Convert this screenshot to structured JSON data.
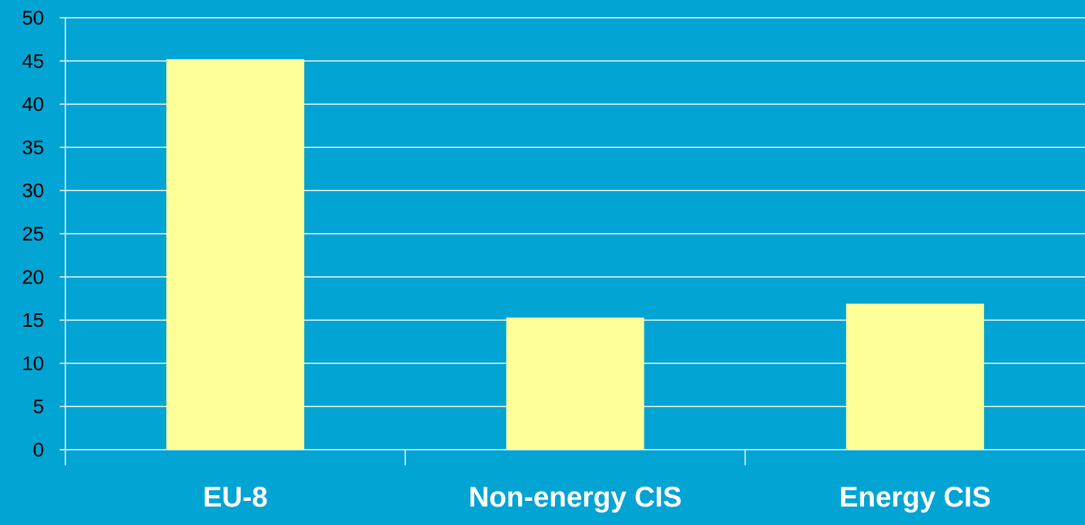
{
  "colors": {
    "background": "#02A4D3",
    "bar_fill": "#FFFF99",
    "gridline": "#FFFFFF",
    "axis": "#FFFFFF",
    "tick_label": "#000000",
    "category_label": "#FFFFFF"
  },
  "chart_data": {
    "type": "bar",
    "title": "",
    "xlabel": "",
    "ylabel": "",
    "categories": [
      "EU-8",
      "Non-energy CIS",
      "Energy CIS"
    ],
    "values": [
      45.2,
      15.3,
      16.9
    ],
    "ylim": [
      0,
      50
    ],
    "yticks": [
      0,
      5,
      10,
      15,
      20,
      25,
      30,
      35,
      40,
      45,
      50
    ],
    "ytick_labels": [
      "0",
      "5",
      "10",
      "15",
      "20",
      "25",
      "30",
      "35",
      "40",
      "45",
      "50"
    ],
    "grid": true,
    "legend": "none"
  }
}
